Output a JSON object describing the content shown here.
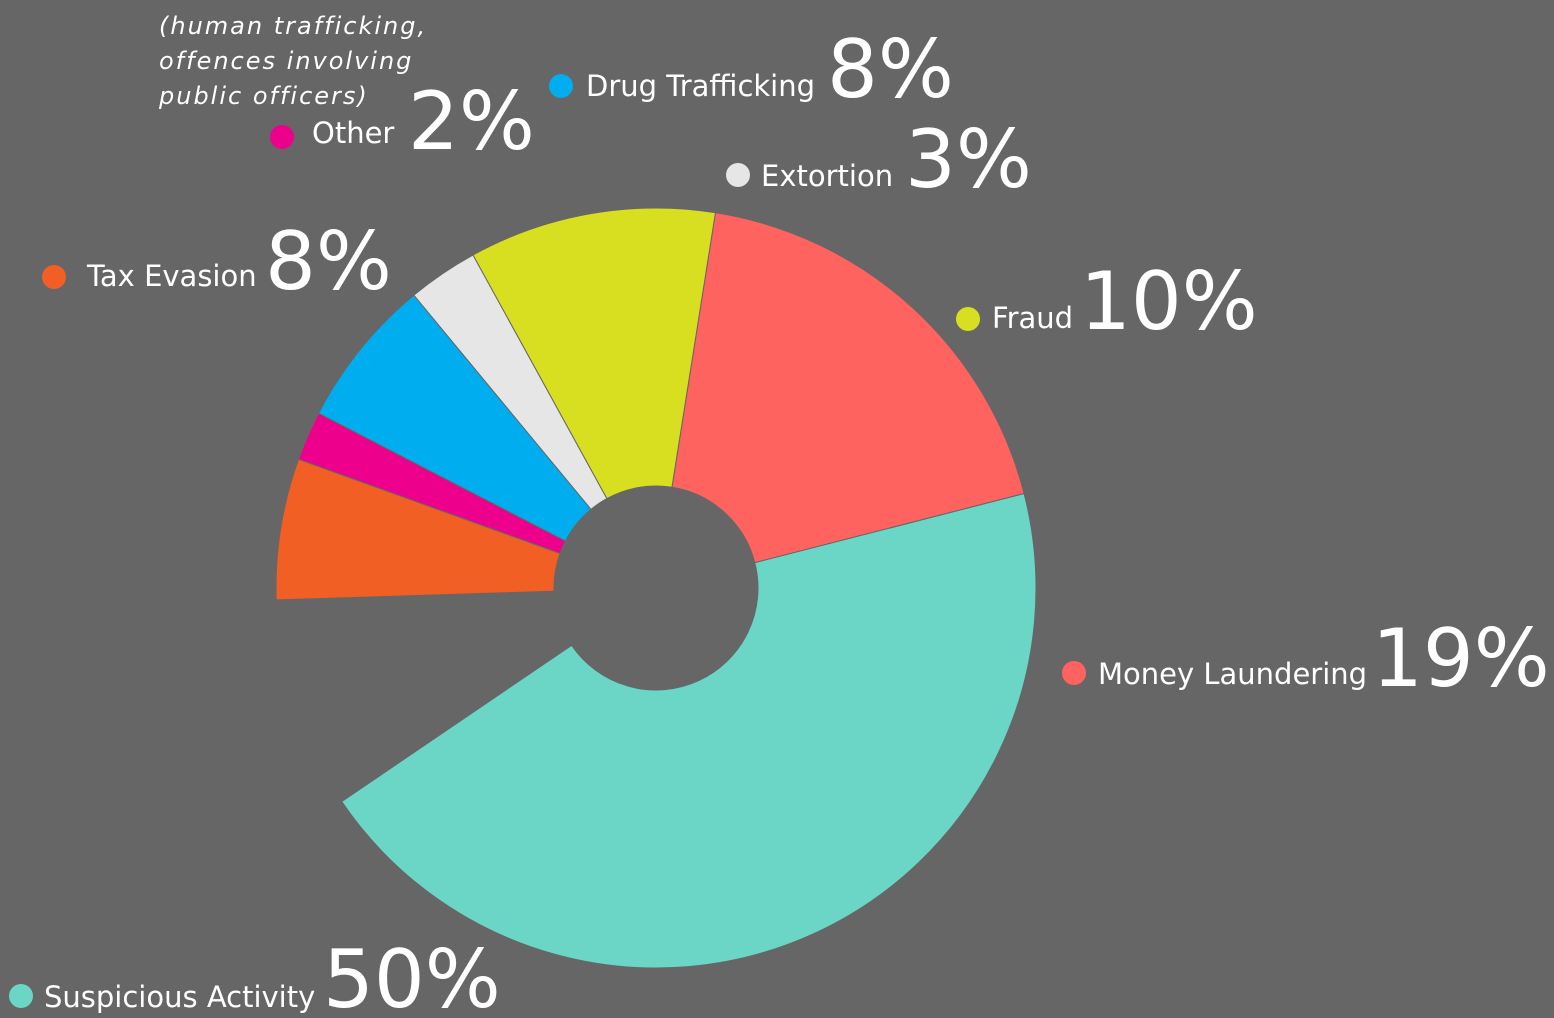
{
  "chart_data": {
    "type": "pie",
    "title": "",
    "categories": [
      "Suspicious Activity",
      "Money Laundering",
      "Fraud",
      "Extortion",
      "Drug Trafficking",
      "Other",
      "Tax Evasion"
    ],
    "values": [
      50,
      19,
      10,
      3,
      8,
      2,
      8
    ],
    "labels": [
      "50%",
      "19%",
      "10%",
      "3%",
      "8%",
      "2%",
      "8%"
    ],
    "note": "(human trafficking, offences involving public officers)",
    "note_lines": [
      "(human trafficking,",
      "offences involving",
      "public officers)"
    ],
    "colors": [
      "#6bd6c6",
      "#ff635f",
      "#d8df20",
      "#e6e6e6",
      "#00adef",
      "#ec008c",
      "#f15f24"
    ],
    "legend_placement": "around the chart"
  },
  "background_color": "#666666"
}
